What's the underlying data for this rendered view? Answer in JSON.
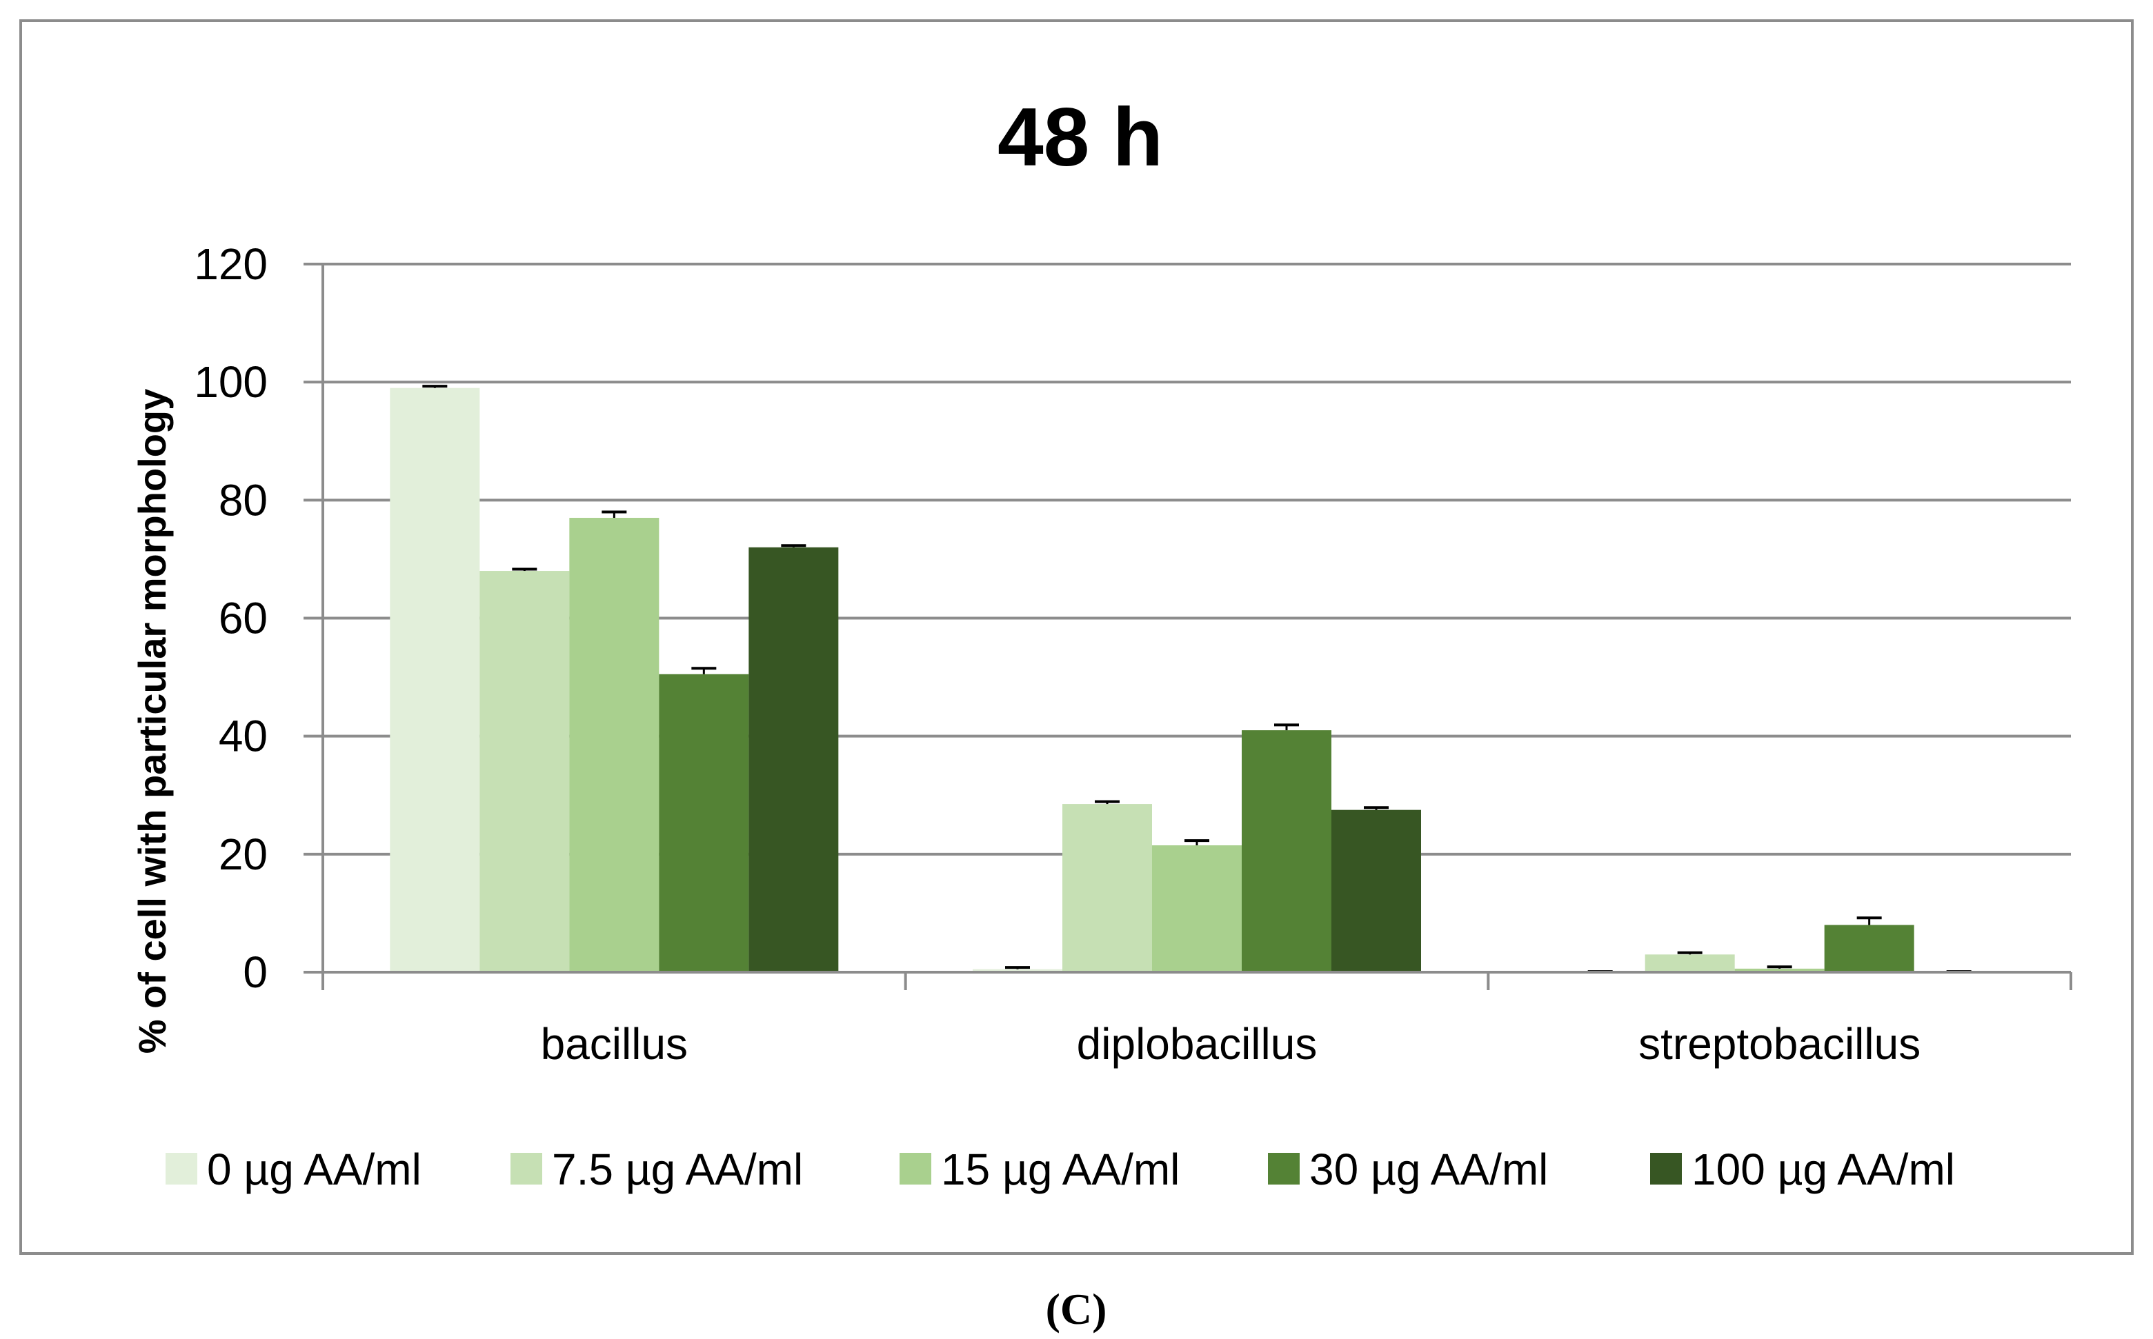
{
  "chart_data": {
    "type": "bar",
    "title": "48 h",
    "xlabel": "",
    "ylabel": "% of cell with particular morphology",
    "ylim": [
      0,
      120
    ],
    "yticks": [
      "0",
      "20",
      "40",
      "60",
      "80",
      "100",
      "120"
    ],
    "grid": true,
    "legend_position": "bottom",
    "categories": [
      "bacillus",
      "diplobacillus",
      "streptobacillus"
    ],
    "series": [
      {
        "name": "0 µg AA/ml",
        "color": "#e2efda",
        "values": [
          99,
          0.5,
          0
        ],
        "errors": [
          0.3,
          0.3,
          0.1
        ]
      },
      {
        "name": "7.5 µg AA/ml",
        "color": "#c6e0b4",
        "values": [
          68,
          28.5,
          3
        ],
        "errors": [
          0.3,
          0.4,
          0.3
        ]
      },
      {
        "name": "15 µg AA/ml",
        "color": "#a9d08e",
        "values": [
          77,
          21.5,
          0.6
        ],
        "errors": [
          1.0,
          0.8,
          0.3
        ]
      },
      {
        "name": "30 µg AA/ml",
        "color": "#548235",
        "values": [
          50.5,
          41,
          8
        ],
        "errors": [
          1.0,
          0.9,
          1.2
        ]
      },
      {
        "name": "100 µg AA/ml",
        "color": "#375623",
        "values": [
          72,
          27.5,
          0
        ],
        "errors": [
          0.3,
          0.4,
          0.1
        ]
      }
    ],
    "caption": "(C)"
  }
}
